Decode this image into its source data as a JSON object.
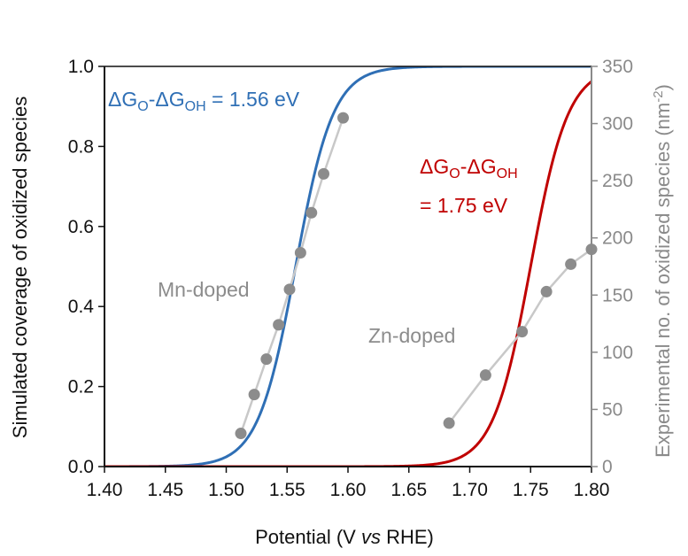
{
  "chart_data": {
    "type": "line",
    "xlabel": {
      "pre": "Potential (V ",
      "italic": "vs",
      "post": " RHE)"
    },
    "ylabel_left": "Simulated coverage of oxidized species",
    "ylabel_right": {
      "main": "Experimental no. of oxidized species (nm",
      "sup": "-2",
      "close": ")"
    },
    "xlim": [
      1.4,
      1.8
    ],
    "ylim_left": [
      0.0,
      1.0
    ],
    "ylim_right": [
      0,
      350
    ],
    "x_ticks": [
      "1.40",
      "1.45",
      "1.50",
      "1.55",
      "1.60",
      "1.65",
      "1.70",
      "1.75",
      "1.80"
    ],
    "y_left_ticks": [
      "0.0",
      "0.2",
      "0.4",
      "0.6",
      "0.8",
      "1.0"
    ],
    "y_right_ticks": [
      "0",
      "50",
      "100",
      "150",
      "200",
      "250",
      "300",
      "350"
    ],
    "grid": false,
    "series": [
      {
        "kind": "simulated-curve",
        "axis": "left",
        "color": "#2f6fb5",
        "center": 1.557,
        "kT": 0.01545,
        "label": {
          "head": "ΔG",
          "sub1": "O",
          "mid": "-ΔG",
          "sub2": "OH",
          "tail": " = 1.56 eV"
        }
      },
      {
        "kind": "simulated-curve",
        "axis": "left",
        "color": "#c00000",
        "center": 1.75,
        "kT": 0.01545,
        "label": {
          "head": "ΔG",
          "sub1": "O",
          "mid": "-ΔG",
          "sub2": "OH",
          "line2": "= 1.75 eV"
        }
      },
      {
        "kind": "experimental",
        "axis": "right",
        "name": "Mn-doped",
        "color": "#8c8c8c",
        "line_color": "#c8c8c8",
        "x": [
          1.512,
          1.523,
          1.533,
          1.543,
          1.552,
          1.561,
          1.57,
          1.58,
          1.596
        ],
        "y": [
          29,
          63,
          94,
          124,
          155,
          187,
          222,
          256,
          305
        ]
      },
      {
        "kind": "experimental",
        "axis": "right",
        "name": "Zn-doped",
        "color": "#8c8c8c",
        "line_color": "#c8c8c8",
        "x": [
          1.683,
          1.713,
          1.743,
          1.763,
          1.783,
          1.8
        ],
        "y": [
          38,
          80,
          118,
          153,
          177,
          190
        ]
      }
    ]
  }
}
